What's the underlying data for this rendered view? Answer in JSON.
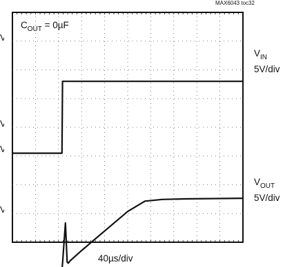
{
  "header": {
    "tag": "MAX6043 toc32"
  },
  "annotations": {
    "cout_prefix": "C",
    "cout_sub": "OUT",
    "cout_suffix": " = 0µF"
  },
  "channels": {
    "vin": {
      "name": "V",
      "sub": "IN",
      "scale": "5V/div"
    },
    "vout": {
      "name": "V",
      "sub": "OUT",
      "scale": "5V/div"
    }
  },
  "x_axis": {
    "scale": "40µs/div"
  },
  "left_edge_fragments": [
    "V",
    "V",
    "V",
    "V"
  ],
  "chart_data": {
    "type": "line",
    "title": "",
    "xlabel": "40µs/div",
    "ylabel": "",
    "grid": true,
    "x_divisions": 10,
    "y_divisions": 8,
    "xlim": [
      0,
      400
    ],
    "x_unit": "µs",
    "trace_color": "#111111",
    "series": [
      {
        "name": "VIN",
        "scale": "5V/div",
        "ground_div_from_top": 4.9,
        "x": [
          0,
          86,
          87,
          400
        ],
        "y": [
          0,
          0,
          12.5,
          12.5
        ]
      },
      {
        "name": "VOUT",
        "scale": "5V/div",
        "ground_div_from_top": 8.93,
        "x": [
          0,
          86,
          87,
          92,
          95,
          97,
          100,
          120,
          160,
          200,
          230,
          260,
          300,
          400
        ],
        "y": [
          0,
          0,
          0.9,
          8.0,
          1.2,
          1.0,
          1.4,
          3.2,
          6.6,
          10.0,
          11.8,
          12.1,
          12.2,
          12.3
        ]
      }
    ],
    "annotations": [
      "COUT = 0µF"
    ]
  }
}
